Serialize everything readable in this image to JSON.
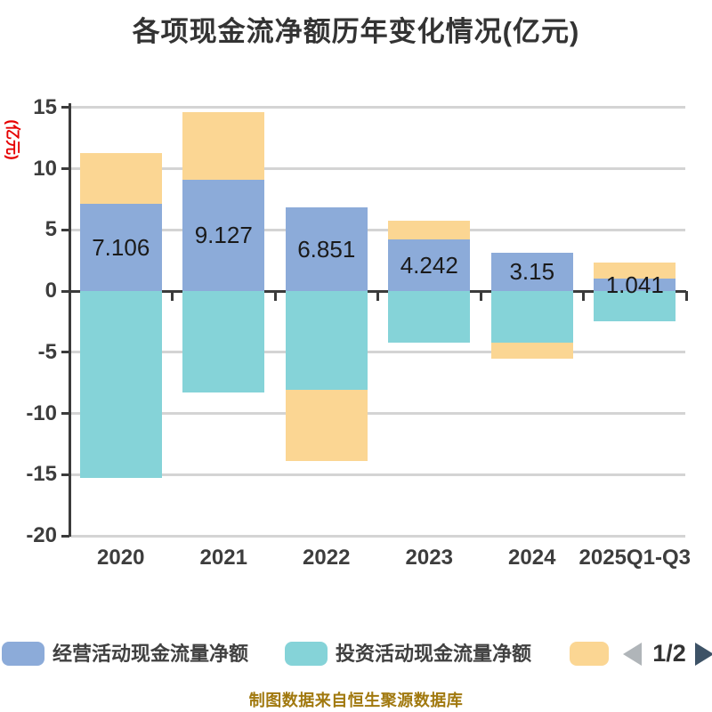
{
  "title": "各项现金流净额历年变化情况(亿元)",
  "y_axis_title": "(亿元)",
  "footer_note": "制图数据来自恒生聚源数据库",
  "legend": {
    "items": [
      {
        "label": "经营活动现金流量净额",
        "color": "#8cabd9"
      },
      {
        "label": "投资活动现金流量净额",
        "color": "#85d3d8"
      },
      {
        "label": "",
        "color": "#fbd693"
      }
    ],
    "page_indicator": "1/2"
  },
  "colors": {
    "operating_blue": "#8cabd9",
    "investing_teal": "#85d3d8",
    "financing_orange": "#fbd693",
    "axis_dark": "#3b3b3b",
    "gridline_gray": "#d4d4d4",
    "title_text": "#333333",
    "bar_label_text": "#1a1a1a",
    "y_axis_title_red": "#e60000",
    "footer_gold": "#a1790f",
    "pager_prev_gray": "#b0b5b9",
    "pager_next_dark": "#3d5266"
  },
  "chart_data": {
    "type": "bar",
    "stacked": true,
    "title": "各项现金流净额历年变化情况(亿元)",
    "ylabel": "(亿元)",
    "categories": [
      "2020",
      "2021",
      "2022",
      "2023",
      "2024",
      "2025Q1-Q3"
    ],
    "series": [
      {
        "name": "经营活动现金流量净额",
        "color": "#8cabd9",
        "values": [
          7.106,
          9.127,
          6.851,
          4.242,
          3.15,
          1.041
        ],
        "data_labels": [
          "7.106",
          "9.127",
          "6.851",
          "4.242",
          "3.15",
          "1.041"
        ]
      },
      {
        "name": "投资活动现金流量净额",
        "color": "#85d3d8",
        "values": [
          -15.3,
          -8.3,
          -8.1,
          -4.2,
          -4.2,
          -2.5
        ]
      },
      {
        "name": "",
        "color": "#fbd693",
        "values": [
          4.2,
          5.5,
          -5.8,
          1.5,
          -1.3,
          1.3
        ]
      }
    ],
    "ylim": [
      -20,
      15
    ],
    "yticks": [
      15,
      10,
      5,
      0,
      -5,
      -10,
      -15,
      -20
    ],
    "grid": true,
    "legend_position": "bottom"
  }
}
